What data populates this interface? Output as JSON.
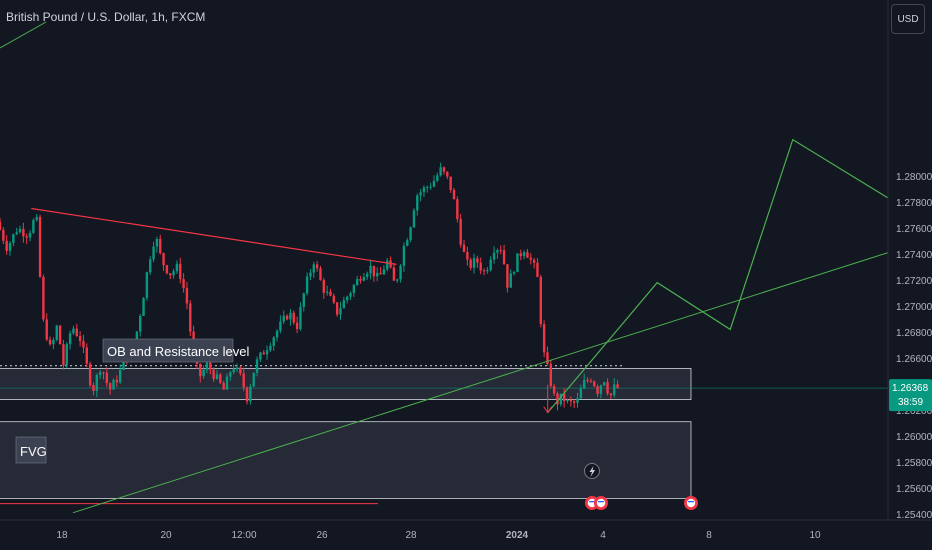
{
  "symbol_title": "British Pound / U.S. Dollar, 1h, FXCM",
  "currency_button": "USD",
  "price_tag": {
    "price": "1.26368",
    "countdown": "38:59"
  },
  "annotations": {
    "ob_label": "OB and Resistance level",
    "fvg_label": "FVG"
  },
  "colors": {
    "background": "#131722",
    "up_candle": "#089981",
    "down_candle": "#f23645",
    "trendline_red": "#f23645",
    "trendline_green": "#4caf50",
    "zone_fill": "#2a2e39",
    "axis_text": "#b2b5be"
  },
  "chart_data": {
    "type": "candlestick",
    "instrument": "GBPUSD",
    "timeframe": "1h",
    "ylim": [
      1.254,
      1.2835
    ],
    "y_ticks": [
      "1.28000",
      "1.27800",
      "1.27600",
      "1.27400",
      "1.27200",
      "1.27000",
      "1.26800",
      "1.26600",
      "1.26400",
      "1.26200",
      "1.26000",
      "1.25800",
      "1.25600",
      "1.25400"
    ],
    "x_ticks": [
      "18",
      "20",
      "12:00",
      "26",
      "28",
      "2024",
      "4",
      "8",
      "10"
    ],
    "last_price": 1.26368,
    "price_path": [
      [
        0,
        1.2765
      ],
      [
        10,
        1.2745
      ],
      [
        20,
        1.276
      ],
      [
        30,
        1.2755
      ],
      [
        38,
        1.277
      ],
      [
        44,
        1.269
      ],
      [
        52,
        1.2665
      ],
      [
        58,
        1.2685
      ],
      [
        64,
        1.2655
      ],
      [
        72,
        1.2685
      ],
      [
        80,
        1.2675
      ],
      [
        86,
        1.2655
      ],
      [
        92,
        1.2635
      ],
      [
        100,
        1.2655
      ],
      [
        108,
        1.2635
      ],
      [
        116,
        1.2645
      ],
      [
        124,
        1.266
      ],
      [
        132,
        1.267
      ],
      [
        140,
        1.2705
      ],
      [
        146,
        1.2735
      ],
      [
        152,
        1.2755
      ],
      [
        158,
        1.2735
      ],
      [
        166,
        1.2725
      ],
      [
        174,
        1.273
      ],
      [
        182,
        1.2705
      ],
      [
        188,
        1.2665
      ],
      [
        194,
        1.2645
      ],
      [
        202,
        1.2655
      ],
      [
        210,
        1.2645
      ],
      [
        218,
        1.2635
      ],
      [
        226,
        1.2655
      ],
      [
        234,
        1.2645
      ],
      [
        240,
        1.263
      ],
      [
        248,
        1.2655
      ],
      [
        256,
        1.2665
      ],
      [
        264,
        1.2675
      ],
      [
        272,
        1.2685
      ],
      [
        280,
        1.2695
      ],
      [
        288,
        1.2685
      ],
      [
        296,
        1.2715
      ],
      [
        304,
        1.2735
      ],
      [
        312,
        1.2715
      ],
      [
        320,
        1.2705
      ],
      [
        326,
        1.2695
      ],
      [
        334,
        1.2705
      ],
      [
        342,
        1.2715
      ],
      [
        350,
        1.2725
      ],
      [
        358,
        1.273
      ],
      [
        366,
        1.272
      ],
      [
        374,
        1.2735
      ],
      [
        382,
        1.2715
      ],
      [
        390,
        1.2745
      ],
      [
        396,
        1.276
      ],
      [
        402,
        1.2785
      ],
      [
        410,
        1.279
      ],
      [
        418,
        1.2795
      ],
      [
        426,
        1.2805
      ],
      [
        434,
        1.2795
      ],
      [
        440,
        1.2775
      ],
      [
        446,
        1.2745
      ],
      [
        452,
        1.273
      ],
      [
        460,
        1.2735
      ],
      [
        468,
        1.2725
      ],
      [
        476,
        1.2745
      ],
      [
        484,
        1.2745
      ],
      [
        490,
        1.2715
      ],
      [
        498,
        1.2735
      ],
      [
        506,
        1.2745
      ],
      [
        512,
        1.2735
      ],
      [
        518,
        1.2725
      ],
      [
        524,
        1.2665
      ],
      [
        530,
        1.2645
      ],
      [
        536,
        1.2625
      ],
      [
        542,
        1.263
      ],
      [
        548,
        1.2625
      ],
      [
        556,
        1.2625
      ],
      [
        562,
        1.264
      ],
      [
        570,
        1.2645
      ],
      [
        576,
        1.2635
      ],
      [
        582,
        1.2645
      ],
      [
        588,
        1.263
      ],
      [
        592,
        1.2637
      ]
    ],
    "ob_resistance_zone": {
      "y_top": 1.2652,
      "y_bottom": 1.2628
    },
    "fvg_zone": {
      "y_top": 1.2611,
      "y_bottom": 1.2552
    },
    "dotted_level": 1.2654,
    "reference_line": 1.26368,
    "red_line_level": 1.2548,
    "red_trendline": [
      [
        30,
        1.2775
      ],
      [
        380,
        1.2732
      ]
    ],
    "green_trendline": [
      [
        70,
        1.2541
      ],
      [
        890,
        1.2751
      ]
    ],
    "projection_path": [
      [
        525,
        1.2618
      ],
      [
        630,
        1.2718
      ],
      [
        700,
        1.2682
      ],
      [
        760,
        1.2828
      ],
      [
        888,
        1.2765
      ]
    ]
  }
}
